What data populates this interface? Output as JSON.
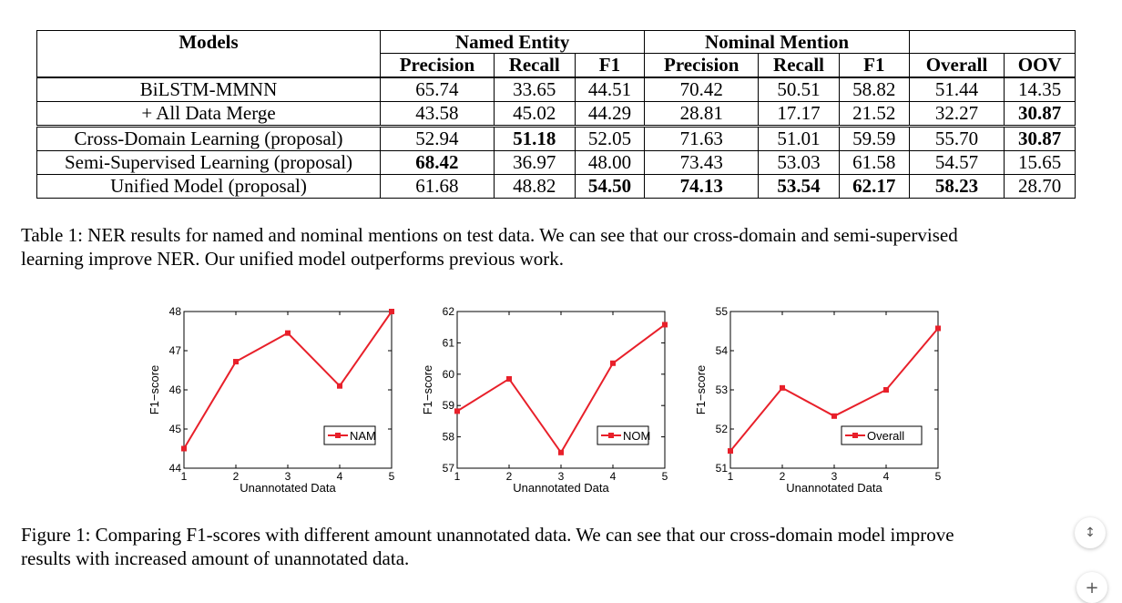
{
  "table": {
    "header_top": {
      "models": "Models",
      "named_entity": "Named Entity",
      "nominal_mention": "Nominal Mention"
    },
    "header_sub": [
      "Precision",
      "Recall",
      "F1",
      "Precision",
      "Recall",
      "F1",
      "Overall",
      "OOV"
    ],
    "rows": [
      {
        "model": "BiLSTM-MMNN",
        "cells": [
          "65.74",
          "33.65",
          "44.51",
          "70.42",
          "50.51",
          "58.82",
          "51.44",
          "14.35"
        ],
        "bold": [
          false,
          false,
          false,
          false,
          false,
          false,
          false,
          false
        ]
      },
      {
        "model": "+ All Data Merge",
        "cells": [
          "43.58",
          "45.02",
          "44.29",
          "28.81",
          "17.17",
          "21.52",
          "32.27",
          "30.87"
        ],
        "bold": [
          false,
          false,
          false,
          false,
          false,
          false,
          false,
          true
        ]
      },
      {
        "model": "Cross-Domain Learning (proposal)",
        "cells": [
          "52.94",
          "51.18",
          "52.05",
          "71.63",
          "51.01",
          "59.59",
          "55.70",
          "30.87"
        ],
        "bold": [
          false,
          true,
          false,
          false,
          false,
          false,
          false,
          true
        ]
      },
      {
        "model": "Semi-Supervised Learning (proposal)",
        "cells": [
          "68.42",
          "36.97",
          "48.00",
          "73.43",
          "53.03",
          "61.58",
          "54.57",
          "15.65"
        ],
        "bold": [
          true,
          false,
          false,
          false,
          false,
          false,
          false,
          false
        ]
      },
      {
        "model": "Unified Model (proposal)",
        "cells": [
          "61.68",
          "48.82",
          "54.50",
          "74.13",
          "53.54",
          "62.17",
          "58.23",
          "28.70"
        ],
        "bold": [
          false,
          false,
          true,
          true,
          true,
          true,
          true,
          false
        ]
      }
    ]
  },
  "table_caption": {
    "line1": "Table 1: NER results for named and nominal mentions on test data. We can see that our cross-domain and semi-supervised",
    "line2": "learning improve NER. Our unified model outperforms previous work."
  },
  "figure_caption": {
    "line1": "Figure 1: Comparing F1-scores with different amount unannotated data. We can see that our cross-domain model improve",
    "line2": "results with increased amount of unannotated data."
  },
  "chart_data": [
    {
      "type": "line",
      "xlabel": "Unannotated Data",
      "ylabel": "F1−score",
      "x": [
        1,
        2,
        3,
        4,
        5
      ],
      "xlim": [
        1,
        5
      ],
      "ylim": [
        44,
        48
      ],
      "yticks": [
        44,
        45,
        46,
        47,
        48
      ],
      "series": [
        {
          "name": "NAM",
          "values": [
            44.5,
            46.72,
            47.45,
            46.1,
            48.0
          ]
        }
      ],
      "legend": "bottom-right",
      "color": "#e8202a"
    },
    {
      "type": "line",
      "xlabel": "Unannotated Data",
      "ylabel": "F1−score",
      "x": [
        1,
        2,
        3,
        4,
        5
      ],
      "xlim": [
        1,
        5
      ],
      "ylim": [
        57,
        62
      ],
      "yticks": [
        57,
        58,
        59,
        60,
        61,
        62
      ],
      "series": [
        {
          "name": "NOM",
          "values": [
            58.82,
            59.85,
            57.5,
            60.35,
            61.58
          ]
        }
      ],
      "legend": "bottom-right",
      "color": "#e8202a"
    },
    {
      "type": "line",
      "xlabel": "Unannotated Data",
      "ylabel": "F1−score",
      "x": [
        1,
        2,
        3,
        4,
        5
      ],
      "xlim": [
        1,
        5
      ],
      "ylim": [
        51,
        55
      ],
      "yticks": [
        51,
        52,
        53,
        54,
        55
      ],
      "series": [
        {
          "name": "Overall",
          "values": [
            51.44,
            53.05,
            52.33,
            53.0,
            54.57
          ]
        }
      ],
      "legend": "bottom-right",
      "color": "#e8202a"
    }
  ],
  "fab": {
    "icon_1": "collapse-arrows-icon",
    "icon_2": "plus-icon"
  }
}
